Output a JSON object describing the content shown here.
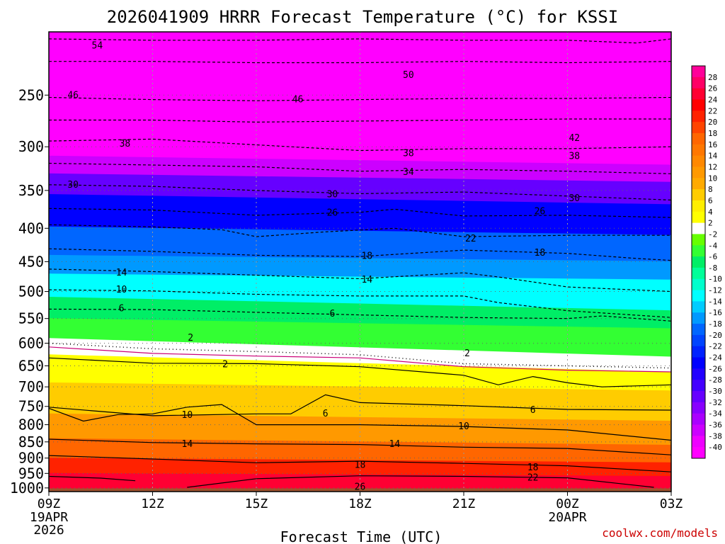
{
  "chart_data": {
    "type": "heatmap",
    "title": "2026041909 HRRR Forecast Temperature (°C) for KSSI",
    "xlabel": "Forecast Time (UTC)",
    "ylabel": "",
    "x_ticks": [
      {
        "label": "09Z",
        "hour": 0,
        "sub": [
          "19APR",
          "2026"
        ]
      },
      {
        "label": "12Z",
        "hour": 3,
        "sub": []
      },
      {
        "label": "15Z",
        "hour": 6,
        "sub": []
      },
      {
        "label": "18Z",
        "hour": 9,
        "sub": []
      },
      {
        "label": "21Z",
        "hour": 12,
        "sub": []
      },
      {
        "label": "00Z",
        "hour": 15,
        "sub": [
          "20APR"
        ]
      },
      {
        "label": "03Z",
        "hour": 18,
        "sub": []
      }
    ],
    "xlim": [
      0,
      18
    ],
    "y_ticks": [
      250,
      300,
      350,
      400,
      450,
      500,
      550,
      600,
      650,
      700,
      750,
      800,
      850,
      900,
      950,
      1000
    ],
    "ylim_hpa": [
      200,
      1013
    ],
    "surface_pressure_hpa": 1003,
    "colorbar": {
      "labels": [
        "28",
        "26",
        "24",
        "22",
        "20",
        "18",
        "16",
        "14",
        "12",
        "10",
        "8",
        "6",
        "4",
        "2",
        "-2",
        "-4",
        "-6",
        "-8",
        "-10",
        "-12",
        "-14",
        "-16",
        "-18",
        "-20",
        "-22",
        "-24",
        "-26",
        "-28",
        "-30",
        "-32",
        "-34",
        "-36",
        "-38",
        "-40"
      ],
      "colors": [
        "#ff0099",
        "#ff0066",
        "#ff0033",
        "#ff0000",
        "#ff2200",
        "#ff4400",
        "#ff6600",
        "#ff7700",
        "#ff8800",
        "#ff9900",
        "#ffaa00",
        "#ffcc00",
        "#ffee00",
        "#ffff00",
        "#ffffff",
        "#66ff00",
        "#33ff33",
        "#00ee66",
        "#00ff99",
        "#00ffcc",
        "#00ffff",
        "#00ccff",
        "#0099ff",
        "#0066ff",
        "#0044ff",
        "#0022ff",
        "#0000ff",
        "#2200ff",
        "#4400ff",
        "#6600ff",
        "#8800ff",
        "#aa00ff",
        "#cc00ff",
        "#ee00ff",
        "#ff00ff"
      ]
    },
    "contour_labels": [
      {
        "text": "54",
        "hour": 1.4,
        "p": 210
      },
      {
        "text": "50",
        "hour": 10.4,
        "p": 233
      },
      {
        "text": "46",
        "hour": 0.7,
        "p": 250
      },
      {
        "text": "46",
        "hour": 7.2,
        "p": 254
      },
      {
        "text": "42",
        "hour": 15.2,
        "p": 291
      },
      {
        "text": "38",
        "hour": 2.2,
        "p": 297
      },
      {
        "text": "38",
        "hour": 10.4,
        "p": 307
      },
      {
        "text": "38",
        "hour": 15.2,
        "p": 310
      },
      {
        "text": "34",
        "hour": 10.4,
        "p": 328
      },
      {
        "text": "30",
        "hour": 0.7,
        "p": 343
      },
      {
        "text": "30",
        "hour": 8.2,
        "p": 355
      },
      {
        "text": "30",
        "hour": 15.2,
        "p": 360
      },
      {
        "text": "26",
        "hour": 8.2,
        "p": 379
      },
      {
        "text": "26",
        "hour": 14.2,
        "p": 377
      },
      {
        "text": "22",
        "hour": 12.2,
        "p": 415
      },
      {
        "text": "18",
        "hour": 9.2,
        "p": 441
      },
      {
        "text": "18",
        "hour": 14.2,
        "p": 436
      },
      {
        "text": "14",
        "hour": 2.1,
        "p": 468
      },
      {
        "text": "14",
        "hour": 9.2,
        "p": 480
      },
      {
        "text": "10",
        "hour": 2.1,
        "p": 497
      },
      {
        "text": "6",
        "hour": 2.1,
        "p": 531
      },
      {
        "text": "6",
        "hour": 8.2,
        "p": 541
      },
      {
        "text": "2",
        "hour": 4.1,
        "p": 589
      },
      {
        "text": "2",
        "hour": 12.1,
        "p": 622
      },
      {
        "text": "2",
        "hour": 5.1,
        "p": 647
      },
      {
        "text": "6",
        "hour": 8.0,
        "p": 769
      },
      {
        "text": "6",
        "hour": 14.0,
        "p": 760
      },
      {
        "text": "10",
        "hour": 4.0,
        "p": 773
      },
      {
        "text": "10",
        "hour": 12.0,
        "p": 805
      },
      {
        "text": "14",
        "hour": 4.0,
        "p": 857
      },
      {
        "text": "14",
        "hour": 10.0,
        "p": 857
      },
      {
        "text": "18",
        "hour": 9.0,
        "p": 922
      },
      {
        "text": "18",
        "hour": 14.0,
        "p": 930
      },
      {
        "text": "22",
        "hour": 14.0,
        "p": 965
      },
      {
        "text": "26",
        "hour": 9.0,
        "p": 997
      }
    ],
    "contour_lines": [
      {
        "style": "dash",
        "hours": [
          0,
          3,
          6,
          9,
          12,
          15,
          17,
          18
        ],
        "p": [
          205,
          206,
          206,
          205,
          206,
          206,
          208,
          205
        ]
      },
      {
        "style": "dash",
        "hours": [
          0,
          3,
          6,
          9,
          12,
          15,
          18
        ],
        "p": [
          222,
          222,
          223,
          223,
          222,
          223,
          222
        ]
      },
      {
        "style": "dash",
        "hours": [
          0,
          3,
          6,
          9,
          12,
          15,
          18
        ],
        "p": [
          252,
          254,
          255,
          254,
          253,
          253,
          252
        ]
      },
      {
        "style": "dash",
        "hours": [
          0,
          3,
          6,
          9,
          12,
          15,
          18
        ],
        "p": [
          273,
          273,
          275,
          274,
          273,
          272,
          272
        ]
      },
      {
        "style": "dash",
        "hours": [
          0,
          3,
          6,
          9,
          12,
          15,
          18
        ],
        "p": [
          294,
          292,
          298,
          304,
          302,
          302,
          300
        ]
      },
      {
        "style": "dash",
        "hours": [
          0,
          3,
          6,
          9,
          12,
          15,
          18
        ],
        "p": [
          318,
          320,
          322,
          327,
          325,
          327,
          330
        ]
      },
      {
        "style": "dash",
        "hours": [
          0,
          3,
          6,
          9,
          12,
          15,
          18
        ],
        "p": [
          343,
          345,
          350,
          354,
          352,
          357,
          362
        ]
      },
      {
        "style": "dash",
        "hours": [
          0,
          3,
          6,
          9,
          10,
          12,
          15,
          18
        ],
        "p": [
          373,
          375,
          382,
          378,
          374,
          383,
          382,
          385
        ]
      },
      {
        "style": "dash",
        "hours": [
          0,
          3,
          5,
          6,
          8,
          10,
          12,
          15,
          18
        ],
        "p": [
          395,
          398,
          402,
          412,
          405,
          400,
          412,
          410,
          410
        ]
      },
      {
        "style": "dash",
        "hours": [
          0,
          3,
          6,
          9,
          12,
          15,
          17,
          18
        ],
        "p": [
          430,
          434,
          440,
          442,
          432,
          437,
          445,
          448
        ]
      },
      {
        "style": "dash",
        "hours": [
          0,
          3,
          6,
          9,
          12,
          13,
          15,
          18
        ],
        "p": [
          462,
          466,
          472,
          478,
          468,
          475,
          492,
          500
        ]
      },
      {
        "style": "dash",
        "hours": [
          0,
          3,
          6,
          9,
          12,
          13,
          15,
          18
        ],
        "p": [
          497,
          499,
          505,
          508,
          508,
          520,
          535,
          548
        ]
      },
      {
        "style": "dash",
        "hours": [
          0,
          3,
          6,
          9,
          12,
          15,
          16,
          18
        ],
        "p": [
          532,
          533,
          538,
          543,
          548,
          550,
          545,
          555
        ]
      },
      {
        "style": "solid",
        "color": "#000",
        "hours": [
          0,
          3,
          6,
          9,
          12,
          13,
          14,
          15,
          16,
          18
        ],
        "p": [
          632,
          644,
          645,
          652,
          672,
          695,
          675,
          690,
          700,
          695
        ]
      },
      {
        "style": "solid",
        "color": "#000",
        "hours": [
          0,
          3,
          6,
          7,
          8,
          9,
          12,
          15,
          18
        ],
        "p": [
          752,
          775,
          770,
          770,
          720,
          740,
          748,
          758,
          760
        ]
      },
      {
        "style": "solid",
        "color": "#000",
        "hours": [
          0,
          1,
          2,
          3,
          4,
          5,
          6,
          9,
          12,
          15,
          18
        ],
        "p": [
          755,
          790,
          772,
          770,
          752,
          745,
          800,
          800,
          805,
          815,
          845
        ]
      },
      {
        "style": "solid",
        "color": "#000",
        "hours": [
          0,
          3,
          6,
          9,
          12,
          15,
          18
        ],
        "p": [
          842,
          852,
          856,
          858,
          866,
          870,
          890
        ]
      },
      {
        "style": "solid",
        "color": "#000",
        "hours": [
          0,
          3,
          6,
          9,
          12,
          15,
          18
        ],
        "p": [
          892,
          903,
          915,
          910,
          917,
          925,
          945
        ]
      },
      {
        "style": "solid",
        "color": "#000",
        "hours": [
          0,
          1.5,
          2.5
        ],
        "p": [
          960,
          966,
          975
        ]
      },
      {
        "style": "solid",
        "color": "#000",
        "hours": [
          4,
          6,
          9,
          12,
          15,
          17.5
        ],
        "p": [
          998,
          968,
          958,
          960,
          965,
          998
        ]
      },
      {
        "style": "solid",
        "color": "#cc0077",
        "hours": [
          0,
          3,
          6,
          9,
          12,
          15,
          18
        ],
        "p": [
          608,
          622,
          628,
          632,
          652,
          660,
          664
        ]
      },
      {
        "style": "dot",
        "hours": [
          0,
          3,
          6,
          9,
          12,
          15,
          18
        ],
        "p": [
          600,
          612,
          618,
          625,
          645,
          650,
          655
        ]
      }
    ],
    "layers": [
      {
        "color": "#ff00ff",
        "hours": [
          0,
          18
        ],
        "p_top": [
          200,
          200
        ],
        "p_bot": [
          310,
          320
        ]
      },
      {
        "color": "#cc00ff",
        "hours": [
          0,
          18
        ],
        "p_top": [
          310,
          320
        ],
        "p_bot": [
          330,
          340
        ]
      },
      {
        "color": "#6600ff",
        "hours": [
          0,
          18
        ],
        "p_top": [
          330,
          340
        ],
        "p_bot": [
          355,
          368
        ]
      },
      {
        "color": "#0000ff",
        "hours": [
          0,
          18
        ],
        "p_top": [
          355,
          368
        ],
        "p_bot": [
          398,
          410
        ]
      },
      {
        "color": "#0066ff",
        "hours": [
          0,
          18
        ],
        "p_top": [
          398,
          410
        ],
        "p_bot": [
          440,
          450
        ]
      },
      {
        "color": "#0099ff",
        "hours": [
          0,
          18
        ],
        "p_top": [
          440,
          450
        ],
        "p_bot": [
          470,
          480
        ]
      },
      {
        "color": "#00ffff",
        "hours": [
          0,
          18
        ],
        "p_top": [
          470,
          480
        ],
        "p_bot": [
          510,
          535
        ]
      },
      {
        "color": "#00ee66",
        "hours": [
          0,
          18
        ],
        "p_top": [
          510,
          535
        ],
        "p_bot": [
          550,
          570
        ]
      },
      {
        "color": "#33ff33",
        "hours": [
          0,
          18
        ],
        "p_top": [
          550,
          570
        ],
        "p_bot": [
          590,
          630
        ]
      },
      {
        "color": "#ffffff",
        "hours": [
          0,
          18
        ],
        "p_top": [
          590,
          630
        ],
        "p_bot": [
          625,
          665
        ]
      },
      {
        "color": "#ffff00",
        "hours": [
          0,
          18
        ],
        "p_top": [
          625,
          665
        ],
        "p_bot": [
          690,
          710
        ]
      },
      {
        "color": "#ffcc00",
        "hours": [
          0,
          18
        ],
        "p_top": [
          690,
          710
        ],
        "p_bot": [
          770,
          790
        ]
      },
      {
        "color": "#ff9900",
        "hours": [
          0,
          18
        ],
        "p_top": [
          770,
          790
        ],
        "p_bot": [
          840,
          860
        ]
      },
      {
        "color": "#ff6600",
        "hours": [
          0,
          18
        ],
        "p_top": [
          840,
          860
        ],
        "p_bot": [
          900,
          915
        ]
      },
      {
        "color": "#ff2200",
        "hours": [
          0,
          18
        ],
        "p_top": [
          900,
          915
        ],
        "p_bot": [
          950,
          960
        ]
      },
      {
        "color": "#ff0033",
        "hours": [
          0,
          18
        ],
        "p_top": [
          950,
          960
        ],
        "p_bot": [
          1003,
          1003
        ]
      },
      {
        "color": "#a0522d",
        "hours": [
          0,
          18
        ],
        "p_top": [
          1003,
          1003
        ],
        "p_bot": [
          1013,
          1013
        ]
      }
    ],
    "watermark": "coolwx.com/models"
  }
}
